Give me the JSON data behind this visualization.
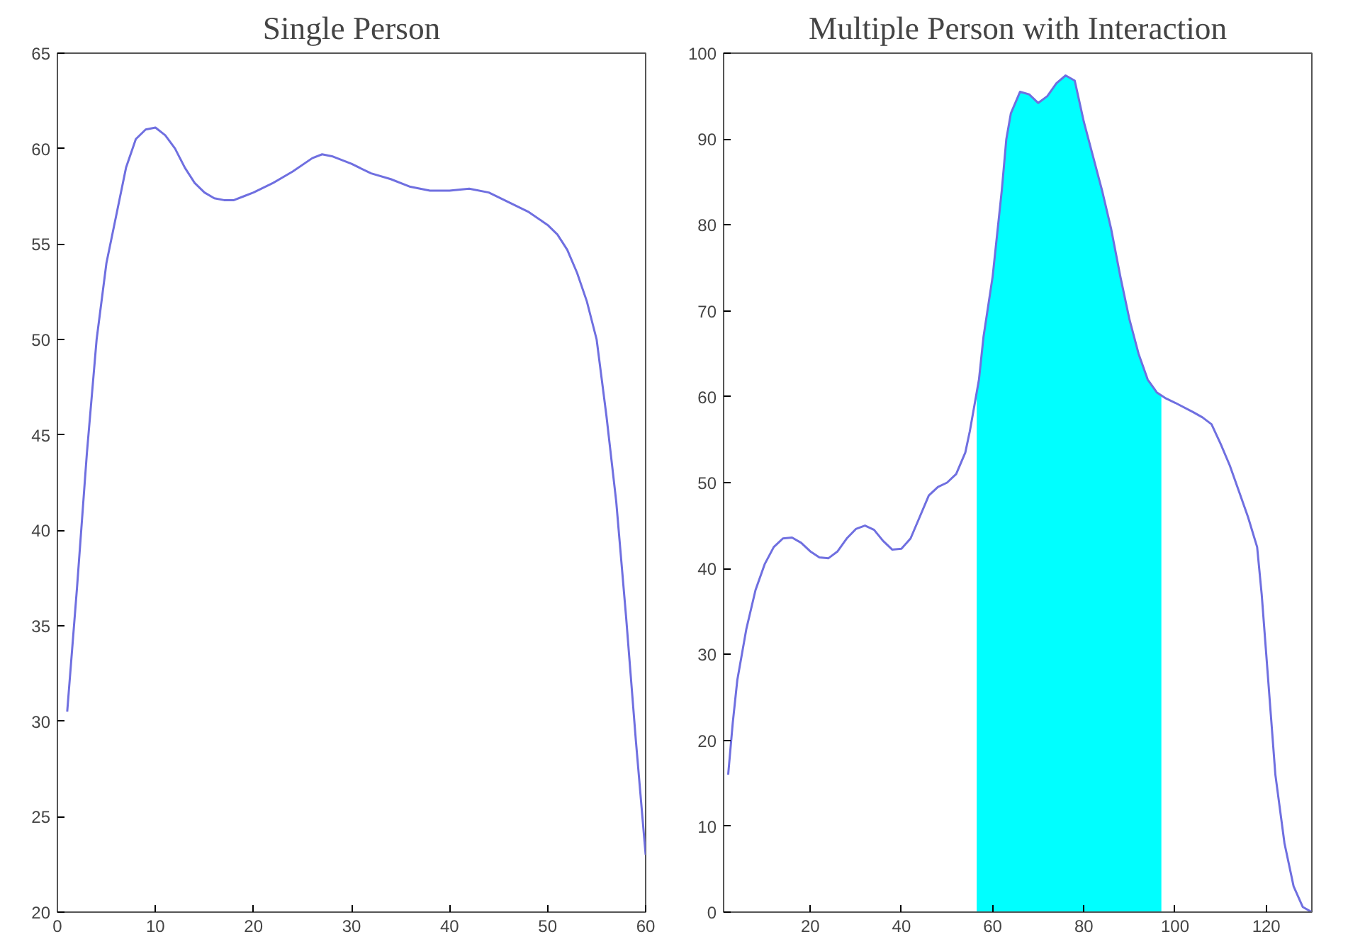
{
  "chart_data": [
    {
      "type": "line",
      "title": "Single Person",
      "xlim": [
        0,
        60
      ],
      "ylim": [
        20,
        65
      ],
      "xticks": [
        0,
        10,
        20,
        30,
        40,
        50,
        60
      ],
      "yticks": [
        20,
        25,
        30,
        35,
        40,
        45,
        50,
        55,
        60,
        65
      ],
      "grid": false,
      "series": [
        {
          "color": "#6f6fe0",
          "x": [
            1,
            2,
            3,
            4,
            5,
            6,
            7,
            8,
            9,
            10,
            11,
            12,
            13,
            14,
            15,
            16,
            17,
            18,
            19,
            20,
            22,
            24,
            26,
            27,
            28,
            30,
            32,
            34,
            36,
            38,
            40,
            42,
            44,
            46,
            48,
            50,
            51,
            52,
            53,
            54,
            55,
            56,
            57,
            58,
            59,
            60
          ],
          "values": [
            30.5,
            37,
            44,
            50,
            54,
            56.5,
            59,
            60.5,
            61,
            61.1,
            60.7,
            60,
            59,
            58.2,
            57.7,
            57.4,
            57.3,
            57.3,
            57.5,
            57.7,
            58.2,
            58.8,
            59.5,
            59.7,
            59.6,
            59.2,
            58.7,
            58.4,
            58,
            57.8,
            57.8,
            57.9,
            57.7,
            57.2,
            56.7,
            56,
            55.5,
            54.7,
            53.5,
            52,
            50,
            46,
            41.5,
            35.5,
            29,
            23
          ]
        }
      ]
    },
    {
      "type": "line",
      "title": "Multiple Person with Interaction",
      "xlim": [
        1,
        130
      ],
      "ylim": [
        0,
        100
      ],
      "xticks": [
        20,
        40,
        60,
        80,
        100,
        120
      ],
      "yticks": [
        0,
        10,
        20,
        30,
        40,
        50,
        60,
        70,
        80,
        90,
        100
      ],
      "grid": false,
      "series": [
        {
          "type": "area",
          "color": "#00ffff",
          "x": [
            56.5,
            57,
            58,
            60,
            62,
            63,
            64,
            66,
            68,
            70,
            72,
            74,
            76,
            78,
            80,
            82,
            84,
            86,
            88,
            90,
            92,
            94,
            96,
            97
          ],
          "values": [
            60.5,
            62,
            67,
            74,
            84,
            90,
            93,
            95.5,
            95.2,
            94.2,
            95,
            96.5,
            97.4,
            96.8,
            92,
            88,
            84,
            79.5,
            74,
            69,
            65,
            62,
            60.5,
            60.2
          ]
        },
        {
          "color": "#6f6fe0",
          "x": [
            2,
            3,
            4,
            6,
            8,
            10,
            12,
            14,
            16,
            18,
            20,
            22,
            24,
            26,
            28,
            30,
            32,
            34,
            36,
            38,
            40,
            42,
            44,
            46,
            48,
            50,
            52,
            54,
            55,
            56,
            57,
            58,
            60,
            62,
            63,
            64,
            66,
            68,
            70,
            72,
            74,
            76,
            78,
            80,
            82,
            84,
            86,
            88,
            90,
            92,
            94,
            96,
            98,
            100,
            104,
            106,
            108,
            110,
            112,
            114,
            116,
            118,
            119,
            120,
            121,
            122,
            124,
            126,
            128,
            130
          ],
          "values": [
            16,
            22,
            27,
            33,
            37.5,
            40.5,
            42.5,
            43.5,
            43.6,
            43,
            42,
            41.3,
            41.2,
            42,
            43.5,
            44.6,
            45,
            44.5,
            43.2,
            42.2,
            42.3,
            43.5,
            46,
            48.5,
            49.5,
            50,
            51,
            53.5,
            56,
            59,
            62,
            67,
            74,
            84,
            90,
            93,
            95.5,
            95.2,
            94.2,
            95,
            96.5,
            97.4,
            96.8,
            92,
            88,
            84,
            79.5,
            74,
            69,
            65,
            62,
            60.5,
            59.8,
            59.3,
            58.2,
            57.6,
            56.8,
            54.5,
            52,
            49,
            46,
            42.5,
            37,
            30,
            23,
            16,
            8,
            3,
            0.6,
            0
          ]
        }
      ]
    }
  ]
}
